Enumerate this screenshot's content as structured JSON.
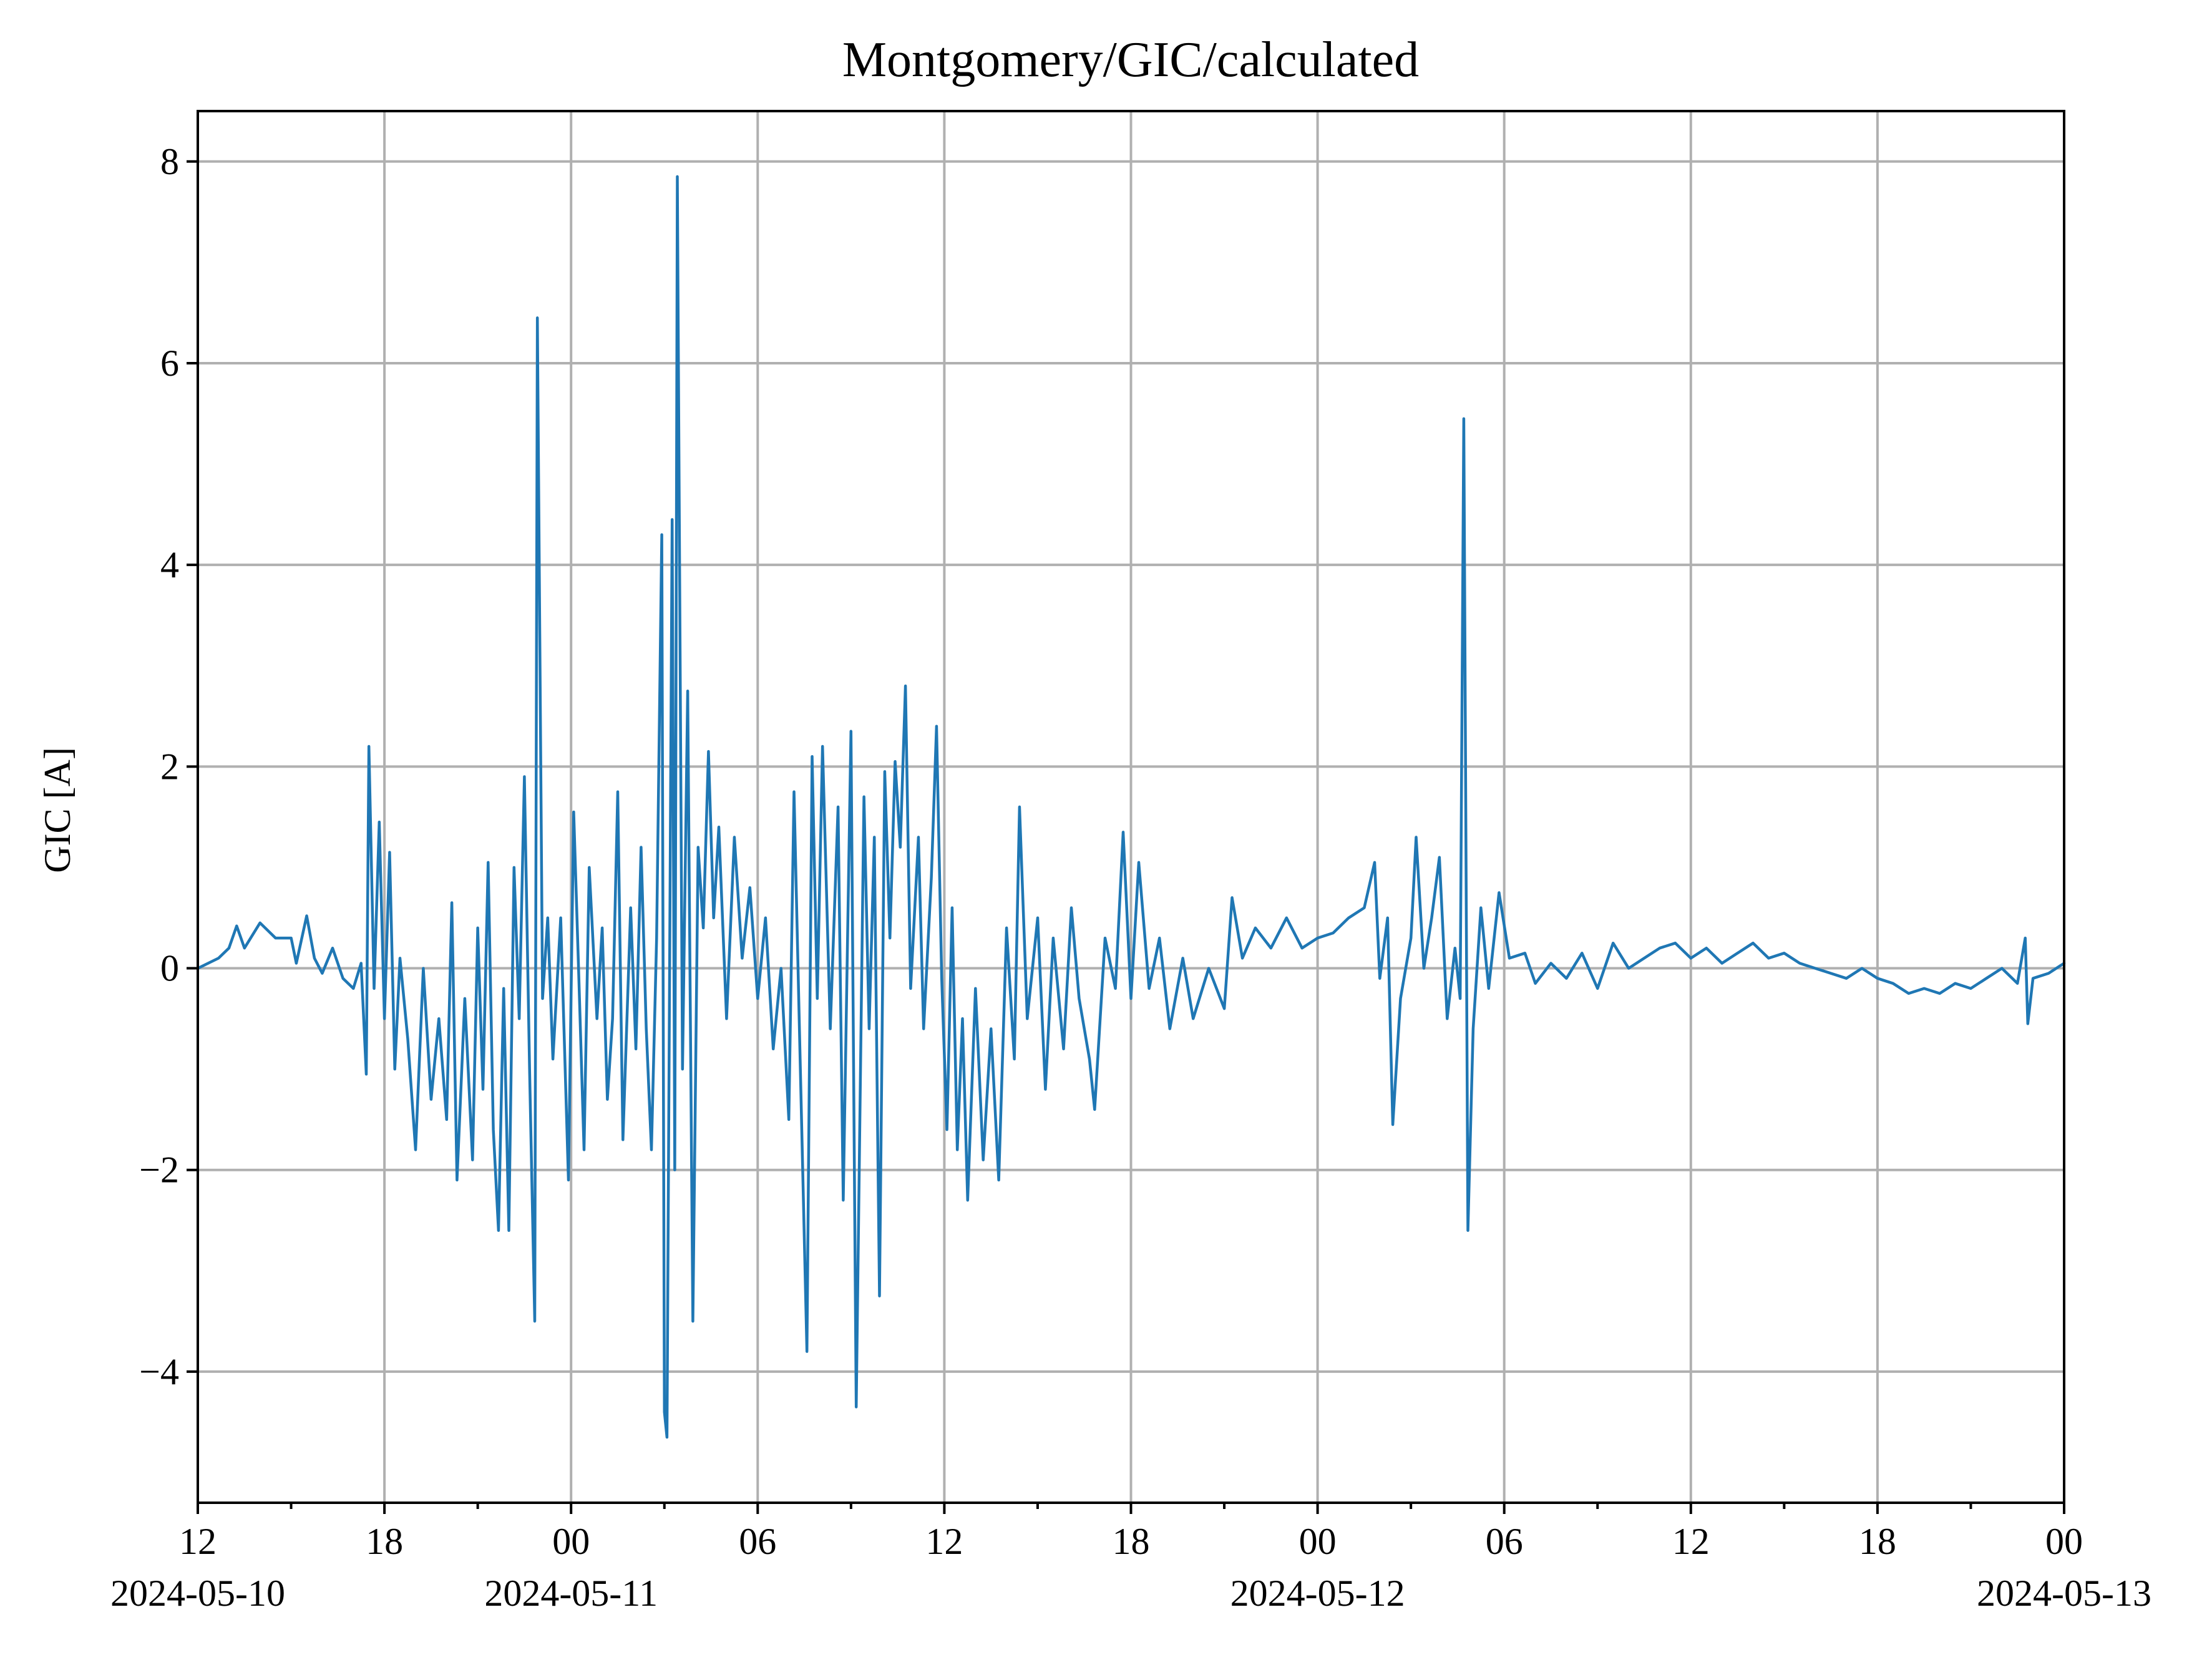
{
  "chart_data": {
    "type": "line",
    "title": "Montgomery/GIC/calculated",
    "xlabel": "",
    "ylabel": "GIC [A]",
    "x_range": [
      "2024-05-10T12:00",
      "2024-05-13T00:00"
    ],
    "ylim": [
      -5.3,
      8.5
    ],
    "y_ticks": [
      -4,
      -2,
      0,
      2,
      4,
      6,
      8
    ],
    "y_tick_labels": [
      "−4",
      "−2",
      "0",
      "2",
      "4",
      "6",
      "8"
    ],
    "x_major_ticks": [
      {
        "t": "2024-05-10T12:00",
        "label": "12",
        "date": "2024-05-10"
      },
      {
        "t": "2024-05-10T18:00",
        "label": "18",
        "date": ""
      },
      {
        "t": "2024-05-11T00:00",
        "label": "00",
        "date": "2024-05-11"
      },
      {
        "t": "2024-05-11T06:00",
        "label": "06",
        "date": ""
      },
      {
        "t": "2024-05-11T12:00",
        "label": "12",
        "date": ""
      },
      {
        "t": "2024-05-11T18:00",
        "label": "18",
        "date": ""
      },
      {
        "t": "2024-05-12T00:00",
        "label": "00",
        "date": "2024-05-12"
      },
      {
        "t": "2024-05-12T06:00",
        "label": "06",
        "date": ""
      },
      {
        "t": "2024-05-12T12:00",
        "label": "12",
        "date": ""
      },
      {
        "t": "2024-05-12T18:00",
        "label": "18",
        "date": ""
      },
      {
        "t": "2024-05-13T00:00",
        "label": "00",
        "date": "2024-05-13"
      }
    ],
    "grid": true,
    "legend": "none",
    "series": [
      {
        "color": "#1f77b4",
        "points": [
          [
            "2024-05-10T12:00",
            0.0
          ],
          [
            "2024-05-10T12:20",
            0.05
          ],
          [
            "2024-05-10T12:40",
            0.1
          ],
          [
            "2024-05-10T13:00",
            0.2
          ],
          [
            "2024-05-10T13:15",
            0.42
          ],
          [
            "2024-05-10T13:30",
            0.2
          ],
          [
            "2024-05-10T14:00",
            0.45
          ],
          [
            "2024-05-10T14:30",
            0.3
          ],
          [
            "2024-05-10T15:00",
            0.3
          ],
          [
            "2024-05-10T15:10",
            0.05
          ],
          [
            "2024-05-10T15:30",
            0.52
          ],
          [
            "2024-05-10T15:45",
            0.1
          ],
          [
            "2024-05-10T16:00",
            -0.05
          ],
          [
            "2024-05-10T16:20",
            0.2
          ],
          [
            "2024-05-10T16:40",
            -0.1
          ],
          [
            "2024-05-10T17:00",
            -0.2
          ],
          [
            "2024-05-10T17:15",
            0.05
          ],
          [
            "2024-05-10T17:25",
            -1.05
          ],
          [
            "2024-05-10T17:30",
            2.2
          ],
          [
            "2024-05-10T17:40",
            -0.2
          ],
          [
            "2024-05-10T17:50",
            1.45
          ],
          [
            "2024-05-10T18:00",
            -0.5
          ],
          [
            "2024-05-10T18:10",
            1.15
          ],
          [
            "2024-05-10T18:20",
            -1.0
          ],
          [
            "2024-05-10T18:30",
            0.1
          ],
          [
            "2024-05-10T18:45",
            -0.7
          ],
          [
            "2024-05-10T19:00",
            -1.8
          ],
          [
            "2024-05-10T19:15",
            0.0
          ],
          [
            "2024-05-10T19:30",
            -1.3
          ],
          [
            "2024-05-10T19:45",
            -0.5
          ],
          [
            "2024-05-10T20:00",
            -1.5
          ],
          [
            "2024-05-10T20:10",
            0.65
          ],
          [
            "2024-05-10T20:20",
            -2.1
          ],
          [
            "2024-05-10T20:35",
            -0.3
          ],
          [
            "2024-05-10T20:50",
            -1.9
          ],
          [
            "2024-05-10T21:00",
            0.4
          ],
          [
            "2024-05-10T21:10",
            -1.2
          ],
          [
            "2024-05-10T21:20",
            1.05
          ],
          [
            "2024-05-10T21:30",
            -1.6
          ],
          [
            "2024-05-10T21:40",
            -2.6
          ],
          [
            "2024-05-10T21:50",
            -0.2
          ],
          [
            "2024-05-10T22:00",
            -2.6
          ],
          [
            "2024-05-10T22:10",
            1.0
          ],
          [
            "2024-05-10T22:20",
            -0.5
          ],
          [
            "2024-05-10T22:30",
            1.9
          ],
          [
            "2024-05-10T22:40",
            -1.0
          ],
          [
            "2024-05-10T22:50",
            -3.5
          ],
          [
            "2024-05-10T22:55",
            6.45
          ],
          [
            "2024-05-10T23:05",
            -0.3
          ],
          [
            "2024-05-10T23:15",
            0.5
          ],
          [
            "2024-05-10T23:25",
            -0.9
          ],
          [
            "2024-05-10T23:40",
            0.5
          ],
          [
            "2024-05-10T23:55",
            -2.1
          ],
          [
            "2024-05-11T00:05",
            1.55
          ],
          [
            "2024-05-11T00:15",
            -0.1
          ],
          [
            "2024-05-11T00:25",
            -1.8
          ],
          [
            "2024-05-11T00:35",
            1.0
          ],
          [
            "2024-05-11T00:50",
            -0.5
          ],
          [
            "2024-05-11T01:00",
            0.4
          ],
          [
            "2024-05-11T01:10",
            -1.3
          ],
          [
            "2024-05-11T01:20",
            -0.5
          ],
          [
            "2024-05-11T01:30",
            1.75
          ],
          [
            "2024-05-11T01:40",
            -1.7
          ],
          [
            "2024-05-11T01:55",
            0.6
          ],
          [
            "2024-05-11T02:05",
            -0.8
          ],
          [
            "2024-05-11T02:15",
            1.2
          ],
          [
            "2024-05-11T02:25",
            -0.6
          ],
          [
            "2024-05-11T02:35",
            -1.8
          ],
          [
            "2024-05-11T02:45",
            0.3
          ],
          [
            "2024-05-11T02:55",
            4.3
          ],
          [
            "2024-05-11T03:00",
            -4.4
          ],
          [
            "2024-05-11T03:05",
            -4.65
          ],
          [
            "2024-05-11T03:15",
            4.45
          ],
          [
            "2024-05-11T03:20",
            -2.0
          ],
          [
            "2024-05-11T03:25",
            7.85
          ],
          [
            "2024-05-11T03:35",
            -1.0
          ],
          [
            "2024-05-11T03:45",
            2.75
          ],
          [
            "2024-05-11T03:55",
            -3.5
          ],
          [
            "2024-05-11T04:05",
            1.2
          ],
          [
            "2024-05-11T04:15",
            0.4
          ],
          [
            "2024-05-11T04:25",
            2.15
          ],
          [
            "2024-05-11T04:35",
            0.5
          ],
          [
            "2024-05-11T04:45",
            1.4
          ],
          [
            "2024-05-11T05:00",
            -0.5
          ],
          [
            "2024-05-11T05:15",
            1.3
          ],
          [
            "2024-05-11T05:30",
            0.1
          ],
          [
            "2024-05-11T05:45",
            0.8
          ],
          [
            "2024-05-11T06:00",
            -0.3
          ],
          [
            "2024-05-11T06:15",
            0.5
          ],
          [
            "2024-05-11T06:30",
            -0.8
          ],
          [
            "2024-05-11T06:45",
            0.0
          ],
          [
            "2024-05-11T07:00",
            -1.5
          ],
          [
            "2024-05-11T07:10",
            1.75
          ],
          [
            "2024-05-11T07:20",
            -0.5
          ],
          [
            "2024-05-11T07:35",
            -3.8
          ],
          [
            "2024-05-11T07:45",
            2.1
          ],
          [
            "2024-05-11T07:55",
            -0.3
          ],
          [
            "2024-05-11T08:05",
            2.2
          ],
          [
            "2024-05-11T08:20",
            -0.6
          ],
          [
            "2024-05-11T08:35",
            1.6
          ],
          [
            "2024-05-11T08:45",
            -2.3
          ],
          [
            "2024-05-11T09:00",
            2.35
          ],
          [
            "2024-05-11T09:10",
            -4.35
          ],
          [
            "2024-05-11T09:25",
            1.7
          ],
          [
            "2024-05-11T09:35",
            -0.6
          ],
          [
            "2024-05-11T09:45",
            1.3
          ],
          [
            "2024-05-11T09:55",
            -3.25
          ],
          [
            "2024-05-11T10:05",
            1.95
          ],
          [
            "2024-05-11T10:15",
            0.3
          ],
          [
            "2024-05-11T10:25",
            2.05
          ],
          [
            "2024-05-11T10:35",
            1.2
          ],
          [
            "2024-05-11T10:45",
            2.8
          ],
          [
            "2024-05-11T10:55",
            -0.2
          ],
          [
            "2024-05-11T11:10",
            1.3
          ],
          [
            "2024-05-11T11:20",
            -0.6
          ],
          [
            "2024-05-11T11:35",
            0.9
          ],
          [
            "2024-05-11T11:45",
            2.4
          ],
          [
            "2024-05-11T11:55",
            -0.1
          ],
          [
            "2024-05-11T12:05",
            -1.6
          ],
          [
            "2024-05-11T12:15",
            0.6
          ],
          [
            "2024-05-11T12:25",
            -1.8
          ],
          [
            "2024-05-11T12:35",
            -0.5
          ],
          [
            "2024-05-11T12:45",
            -2.3
          ],
          [
            "2024-05-11T13:00",
            -0.2
          ],
          [
            "2024-05-11T13:15",
            -1.9
          ],
          [
            "2024-05-11T13:30",
            -0.6
          ],
          [
            "2024-05-11T13:45",
            -2.1
          ],
          [
            "2024-05-11T14:00",
            0.4
          ],
          [
            "2024-05-11T14:15",
            -0.9
          ],
          [
            "2024-05-11T14:25",
            1.6
          ],
          [
            "2024-05-11T14:40",
            -0.5
          ],
          [
            "2024-05-11T15:00",
            0.5
          ],
          [
            "2024-05-11T15:15",
            -1.2
          ],
          [
            "2024-05-11T15:30",
            0.3
          ],
          [
            "2024-05-11T15:50",
            -0.8
          ],
          [
            "2024-05-11T16:05",
            0.6
          ],
          [
            "2024-05-11T16:20",
            -0.3
          ],
          [
            "2024-05-11T16:40",
            -0.9
          ],
          [
            "2024-05-11T16:50",
            -1.4
          ],
          [
            "2024-05-11T17:10",
            0.3
          ],
          [
            "2024-05-11T17:30",
            -0.2
          ],
          [
            "2024-05-11T17:45",
            1.35
          ],
          [
            "2024-05-11T18:00",
            -0.3
          ],
          [
            "2024-05-11T18:15",
            1.05
          ],
          [
            "2024-05-11T18:35",
            -0.2
          ],
          [
            "2024-05-11T18:55",
            0.3
          ],
          [
            "2024-05-11T19:15",
            -0.6
          ],
          [
            "2024-05-11T19:40",
            0.1
          ],
          [
            "2024-05-11T20:00",
            -0.5
          ],
          [
            "2024-05-11T20:30",
            0.0
          ],
          [
            "2024-05-11T21:00",
            -0.4
          ],
          [
            "2024-05-11T21:15",
            0.7
          ],
          [
            "2024-05-11T21:35",
            0.1
          ],
          [
            "2024-05-11T22:00",
            0.4
          ],
          [
            "2024-05-11T22:30",
            0.2
          ],
          [
            "2024-05-11T23:00",
            0.5
          ],
          [
            "2024-05-11T23:30",
            0.2
          ],
          [
            "2024-05-12T00:00",
            0.3
          ],
          [
            "2024-05-12T00:30",
            0.35
          ],
          [
            "2024-05-12T01:00",
            0.5
          ],
          [
            "2024-05-12T01:30",
            0.6
          ],
          [
            "2024-05-12T01:50",
            1.05
          ],
          [
            "2024-05-12T02:00",
            -0.1
          ],
          [
            "2024-05-12T02:15",
            0.5
          ],
          [
            "2024-05-12T02:25",
            -1.55
          ],
          [
            "2024-05-12T02:40",
            -0.3
          ],
          [
            "2024-05-12T03:00",
            0.3
          ],
          [
            "2024-05-12T03:10",
            1.3
          ],
          [
            "2024-05-12T03:25",
            0.0
          ],
          [
            "2024-05-12T03:40",
            0.5
          ],
          [
            "2024-05-12T03:55",
            1.1
          ],
          [
            "2024-05-12T04:10",
            -0.5
          ],
          [
            "2024-05-12T04:25",
            0.2
          ],
          [
            "2024-05-12T04:35",
            -0.3
          ],
          [
            "2024-05-12T04:42",
            5.45
          ],
          [
            "2024-05-12T04:50",
            -2.6
          ],
          [
            "2024-05-12T05:00",
            -0.6
          ],
          [
            "2024-05-12T05:15",
            0.6
          ],
          [
            "2024-05-12T05:30",
            -0.2
          ],
          [
            "2024-05-12T05:50",
            0.75
          ],
          [
            "2024-05-12T06:10",
            0.1
          ],
          [
            "2024-05-12T06:40",
            0.15
          ],
          [
            "2024-05-12T07:00",
            -0.15
          ],
          [
            "2024-05-12T07:30",
            0.05
          ],
          [
            "2024-05-12T08:00",
            -0.1
          ],
          [
            "2024-05-12T08:30",
            0.15
          ],
          [
            "2024-05-12T09:00",
            -0.2
          ],
          [
            "2024-05-12T09:30",
            0.25
          ],
          [
            "2024-05-12T10:00",
            0.0
          ],
          [
            "2024-05-12T10:30",
            0.1
          ],
          [
            "2024-05-12T11:00",
            0.2
          ],
          [
            "2024-05-12T11:30",
            0.25
          ],
          [
            "2024-05-12T12:00",
            0.1
          ],
          [
            "2024-05-12T12:30",
            0.2
          ],
          [
            "2024-05-12T13:00",
            0.05
          ],
          [
            "2024-05-12T13:30",
            0.15
          ],
          [
            "2024-05-12T14:00",
            0.25
          ],
          [
            "2024-05-12T14:30",
            0.1
          ],
          [
            "2024-05-12T15:00",
            0.15
          ],
          [
            "2024-05-12T15:30",
            0.05
          ],
          [
            "2024-05-12T16:00",
            0.0
          ],
          [
            "2024-05-12T16:30",
            -0.05
          ],
          [
            "2024-05-12T17:00",
            -0.1
          ],
          [
            "2024-05-12T17:30",
            0.0
          ],
          [
            "2024-05-12T18:00",
            -0.1
          ],
          [
            "2024-05-12T18:30",
            -0.15
          ],
          [
            "2024-05-12T19:00",
            -0.25
          ],
          [
            "2024-05-12T19:30",
            -0.2
          ],
          [
            "2024-05-12T20:00",
            -0.25
          ],
          [
            "2024-05-12T20:30",
            -0.15
          ],
          [
            "2024-05-12T21:00",
            -0.2
          ],
          [
            "2024-05-12T21:30",
            -0.1
          ],
          [
            "2024-05-12T22:00",
            0.0
          ],
          [
            "2024-05-12T22:30",
            -0.15
          ],
          [
            "2024-05-12T22:45",
            0.3
          ],
          [
            "2024-05-12T22:50",
            -0.55
          ],
          [
            "2024-05-12T23:00",
            -0.1
          ],
          [
            "2024-05-12T23:30",
            -0.05
          ],
          [
            "2024-05-13T00:00",
            0.05
          ]
        ]
      }
    ]
  }
}
